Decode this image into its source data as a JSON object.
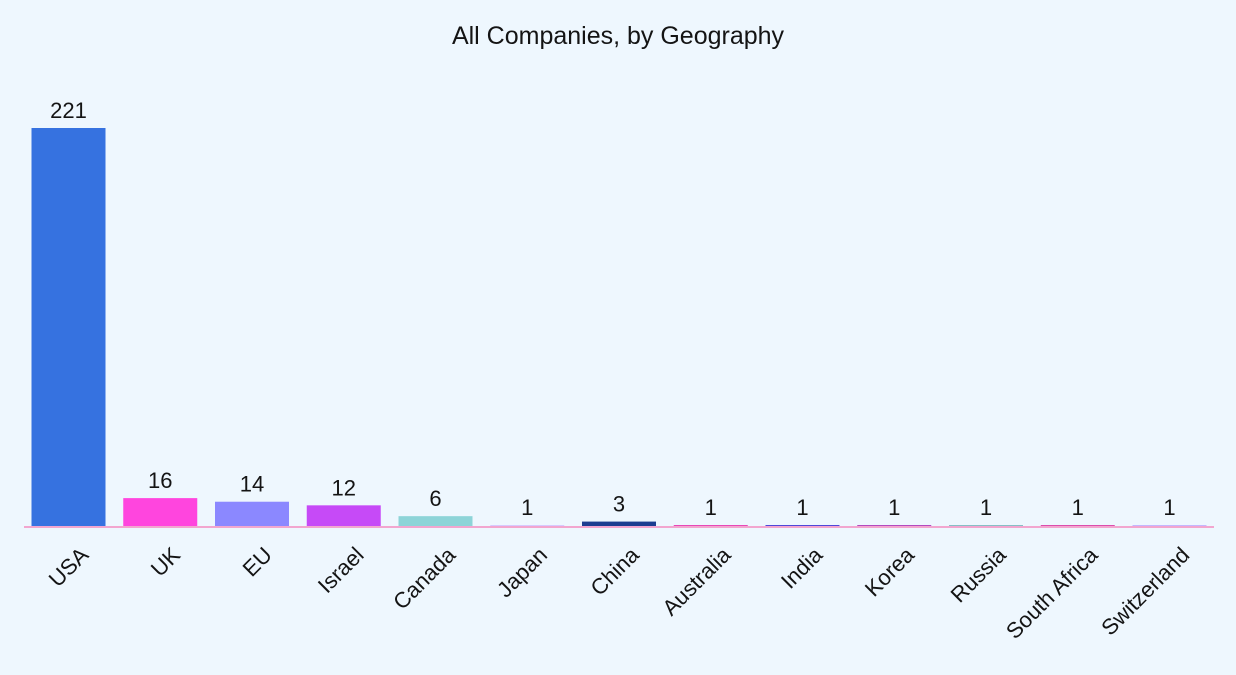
{
  "chart_data": {
    "type": "bar",
    "title": "All Companies, by Geography",
    "xlabel": "",
    "ylabel": "",
    "categories": [
      "USA",
      "UK",
      "EU",
      "Israel",
      "Canada",
      "Japan",
      "China",
      "Australia",
      "India",
      "Korea",
      "Russia",
      "South Africa",
      "Switzerland"
    ],
    "values": [
      221,
      16,
      14,
      12,
      6,
      1,
      3,
      1,
      1,
      1,
      1,
      1,
      1
    ],
    "value_labels": [
      "221",
      "16",
      "14",
      "12",
      "6",
      "1",
      "3",
      "1",
      "1",
      "1",
      "1",
      "1",
      "1"
    ],
    "colors": [
      "#3672e0",
      "#ff45de",
      "#8b88ff",
      "#c64af7",
      "#8dd4d8",
      "#d0c0ff",
      "#1c3e91",
      "#e61fa8",
      "#2b1fd0",
      "#a523b0",
      "#6fb2b8",
      "#d8269a",
      "#b9a8ff"
    ],
    "ylim": [
      0,
      221
    ],
    "grid": false,
    "legend": "none",
    "background_color": "#eef7fe",
    "axis_line_color": "#f2a6cf"
  }
}
